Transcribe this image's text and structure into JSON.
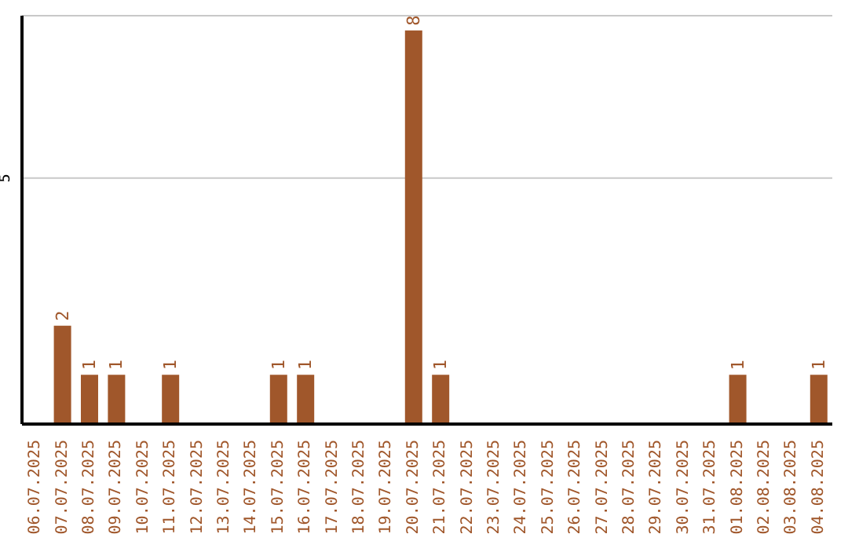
{
  "chart_data": {
    "type": "bar",
    "categories": [
      "06.07.2025",
      "07.07.2025",
      "08.07.2025",
      "09.07.2025",
      "10.07.2025",
      "11.07.2025",
      "12.07.2025",
      "13.07.2025",
      "14.07.2025",
      "15.07.2025",
      "16.07.2025",
      "17.07.2025",
      "18.07.2025",
      "19.07.2025",
      "20.07.2025",
      "21.07.2025",
      "22.07.2025",
      "23.07.2025",
      "24.07.2025",
      "25.07.2025",
      "26.07.2025",
      "27.07.2025",
      "28.07.2025",
      "29.07.2025",
      "30.07.2025",
      "31.07.2025",
      "01.08.2025",
      "02.08.2025",
      "03.08.2025",
      "04.08.2025"
    ],
    "values": [
      0,
      2,
      1,
      1,
      0,
      1,
      0,
      0,
      0,
      1,
      1,
      0,
      0,
      0,
      8,
      1,
      0,
      0,
      0,
      0,
      0,
      0,
      0,
      0,
      0,
      0,
      1,
      0,
      0,
      1
    ],
    "value_labels": [
      null,
      "2",
      "1",
      "1",
      null,
      "1",
      null,
      null,
      null,
      "1",
      "1",
      null,
      null,
      null,
      "8",
      "1",
      null,
      null,
      null,
      null,
      null,
      null,
      null,
      null,
      null,
      null,
      "1",
      null,
      null,
      "1"
    ],
    "color": "#a0572b",
    "ylim": [
      0,
      8.3
    ],
    "yticks": [
      5
    ],
    "grid": "y"
  }
}
